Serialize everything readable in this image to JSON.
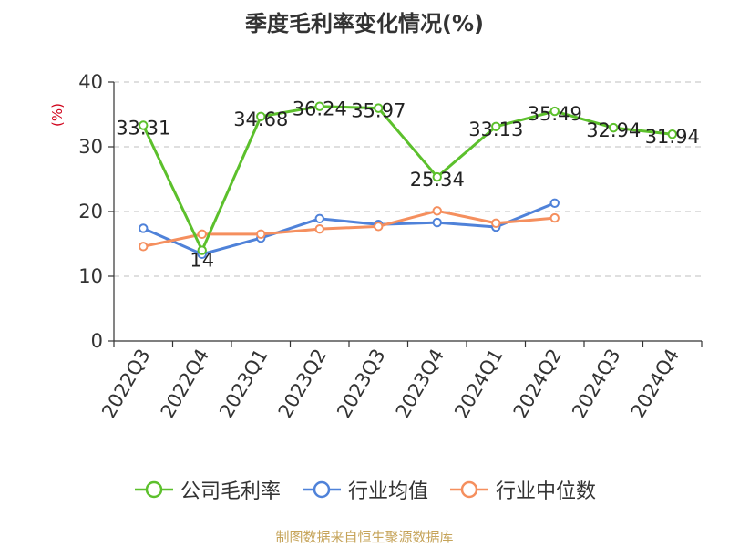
{
  "title": "季度毛利率变化情况(%)",
  "source": "制图数据来自恒生聚源数据库",
  "chart_data": {
    "type": "line",
    "title": "季度毛利率变化情况(%)",
    "ylabel": "(%)",
    "ylim": [
      0,
      40
    ],
    "yticks": [
      0,
      10,
      20,
      30,
      40
    ],
    "grid": true,
    "legend_position": "bottom",
    "categories": [
      "2022Q3",
      "2022Q4",
      "2023Q1",
      "2023Q2",
      "2023Q3",
      "2023Q4",
      "2024Q1",
      "2024Q2",
      "2024Q3",
      "2024Q4"
    ],
    "series": [
      {
        "name": "公司毛利率",
        "color": "#5cc02c",
        "values": [
          33.31,
          14,
          34.68,
          36.24,
          35.97,
          25.34,
          33.13,
          35.49,
          32.94,
          31.94
        ],
        "labels": [
          "33.31",
          "14",
          "34.68",
          "36.24",
          "35.97",
          "25.34",
          "33.13",
          "35.49",
          "32.94",
          "31.94"
        ]
      },
      {
        "name": "行业均值",
        "color": "#4f82d9",
        "values": [
          17.4,
          13.4,
          15.9,
          18.9,
          18.0,
          18.3,
          17.6,
          21.3,
          null,
          null
        ]
      },
      {
        "name": "行业中位数",
        "color": "#f58f5e",
        "values": [
          14.6,
          16.5,
          16.5,
          17.3,
          17.7,
          20.1,
          18.2,
          19.0,
          null,
          null
        ]
      }
    ]
  }
}
